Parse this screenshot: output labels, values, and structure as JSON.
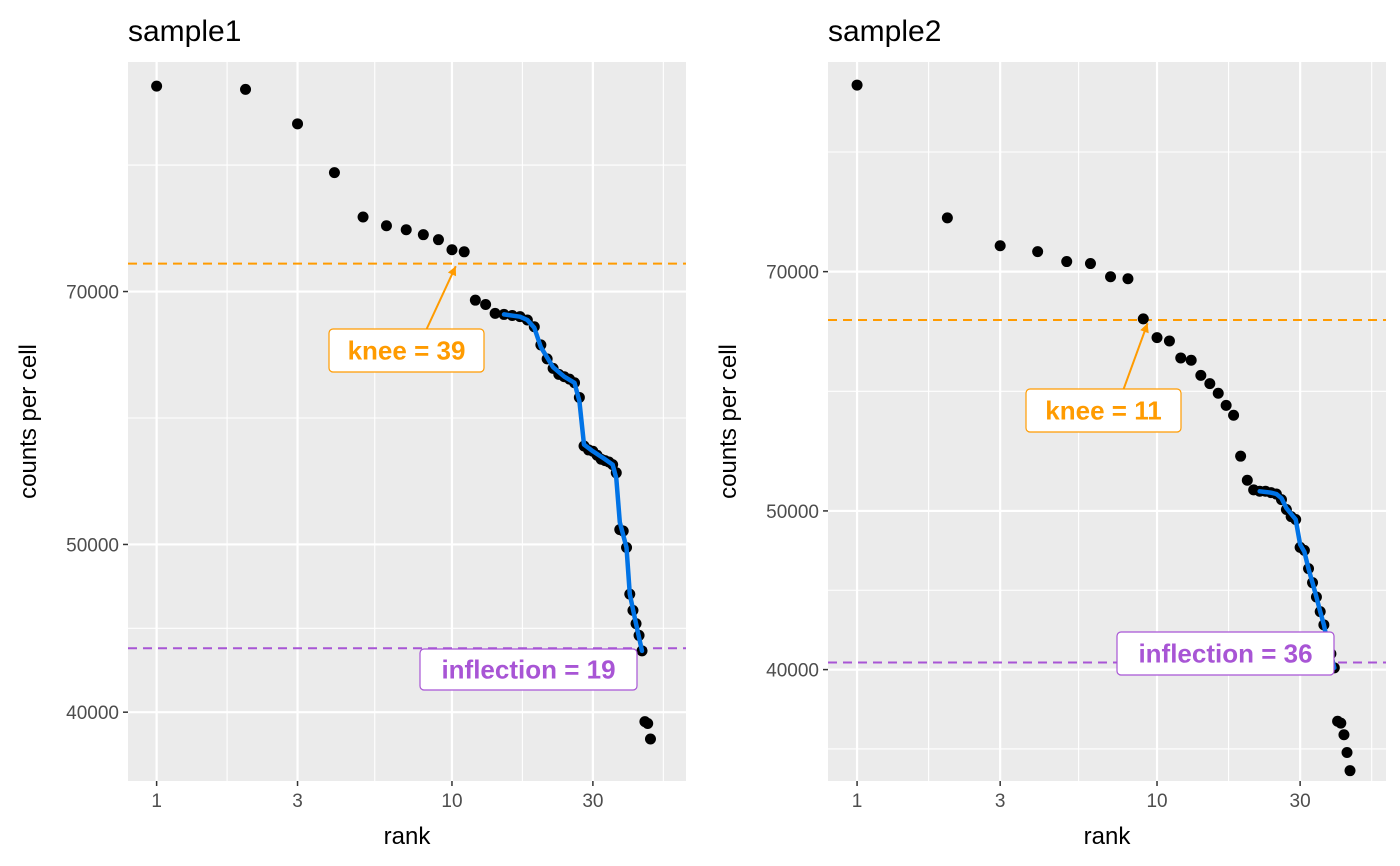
{
  "chart_data": [
    {
      "type": "scatter",
      "title": "sample1",
      "xlabel": "rank",
      "ylabel": "counts per cell",
      "x_scale": "log10",
      "y_scale": "log10",
      "xlim": [
        0.8,
        62
      ],
      "ylim": [
        36500,
        95000
      ],
      "x_breaks": [
        1,
        3,
        10,
        30
      ],
      "x_tick_labels": [
        "1",
        "3",
        "10",
        "30"
      ],
      "y_breaks": [
        40000,
        50000,
        70000
      ],
      "y_tick_labels": [
        "40000",
        "50000",
        "70000"
      ],
      "grid": true,
      "background": "#ebebeb",
      "points": [
        {
          "x": 1,
          "y": 92000
        },
        {
          "x": 2,
          "y": 91600
        },
        {
          "x": 3,
          "y": 87500
        },
        {
          "x": 4,
          "y": 82000
        },
        {
          "x": 5,
          "y": 77300
        },
        {
          "x": 6,
          "y": 76400
        },
        {
          "x": 7,
          "y": 76000
        },
        {
          "x": 8,
          "y": 75500
        },
        {
          "x": 9,
          "y": 75000
        },
        {
          "x": 10,
          "y": 74000
        },
        {
          "x": 11,
          "y": 73800
        },
        {
          "x": 12,
          "y": 69200
        },
        {
          "x": 13,
          "y": 68800
        },
        {
          "x": 14,
          "y": 68000
        },
        {
          "x": 15,
          "y": 67900
        },
        {
          "x": 16,
          "y": 67800
        },
        {
          "x": 17,
          "y": 67700
        },
        {
          "x": 18,
          "y": 67400
        },
        {
          "x": 19,
          "y": 66800
        },
        {
          "x": 20,
          "y": 65200
        },
        {
          "x": 21,
          "y": 64000
        },
        {
          "x": 22,
          "y": 63200
        },
        {
          "x": 23,
          "y": 62700
        },
        {
          "x": 24,
          "y": 62500
        },
        {
          "x": 25,
          "y": 62300
        },
        {
          "x": 26,
          "y": 62000
        },
        {
          "x": 27,
          "y": 60800
        },
        {
          "x": 28,
          "y": 57000
        },
        {
          "x": 29,
          "y": 56700
        },
        {
          "x": 30,
          "y": 56600
        },
        {
          "x": 31,
          "y": 56300
        },
        {
          "x": 32,
          "y": 56000
        },
        {
          "x": 33,
          "y": 55900
        },
        {
          "x": 34,
          "y": 55800
        },
        {
          "x": 35,
          "y": 55600
        },
        {
          "x": 36,
          "y": 55000
        },
        {
          "x": 37,
          "y": 51000
        },
        {
          "x": 38,
          "y": 50900
        },
        {
          "x": 39,
          "y": 49800
        },
        {
          "x": 40,
          "y": 46800
        },
        {
          "x": 41,
          "y": 45800
        },
        {
          "x": 42,
          "y": 45000
        },
        {
          "x": 43,
          "y": 44300
        },
        {
          "x": 44,
          "y": 43400
        },
        {
          "x": 45,
          "y": 39500
        },
        {
          "x": 46,
          "y": 39400
        },
        {
          "x": 47,
          "y": 38600
        }
      ],
      "fit_line": {
        "color": "#0073e6",
        "points": [
          {
            "x": 15,
            "y": 67900
          },
          {
            "x": 17,
            "y": 67700
          },
          {
            "x": 18,
            "y": 67400
          },
          {
            "x": 19,
            "y": 66700
          },
          {
            "x": 20,
            "y": 65000
          },
          {
            "x": 22,
            "y": 63300
          },
          {
            "x": 24,
            "y": 62500
          },
          {
            "x": 26,
            "y": 62000
          },
          {
            "x": 27,
            "y": 60500
          },
          {
            "x": 28,
            "y": 57100
          },
          {
            "x": 30,
            "y": 56600
          },
          {
            "x": 33,
            "y": 56000
          },
          {
            "x": 35,
            "y": 55600
          },
          {
            "x": 36,
            "y": 54600
          },
          {
            "x": 37,
            "y": 51500
          },
          {
            "x": 39,
            "y": 49800
          },
          {
            "x": 40,
            "y": 46800
          },
          {
            "x": 42,
            "y": 45000
          },
          {
            "x": 44,
            "y": 43400
          }
        ]
      },
      "reference_lines": [
        {
          "y": 72650,
          "color": "#ff9b00",
          "label": "knee = 39",
          "arrow_to": {
            "x": 10.3,
            "y": 72400
          }
        },
        {
          "y": 43550,
          "color": "#a855d5",
          "label": "inflection = 19"
        }
      ]
    },
    {
      "type": "scatter",
      "title": "sample2",
      "xlabel": "rank",
      "ylabel": "counts per cell",
      "x_scale": "log10",
      "y_scale": "log10",
      "xlim": [
        0.8,
        58
      ],
      "ylim": [
        34200,
        94000
      ],
      "x_breaks": [
        1,
        3,
        10,
        30
      ],
      "x_tick_labels": [
        "1",
        "3",
        "10",
        "30"
      ],
      "y_breaks": [
        40000,
        50000,
        70000
      ],
      "y_tick_labels": [
        "40000",
        "50000",
        "70000"
      ],
      "grid": true,
      "background": "#ebebeb",
      "points": [
        {
          "x": 1,
          "y": 91000
        },
        {
          "x": 2,
          "y": 75500
        },
        {
          "x": 3,
          "y": 72600
        },
        {
          "x": 4,
          "y": 72000
        },
        {
          "x": 5,
          "y": 71000
        },
        {
          "x": 6,
          "y": 70800
        },
        {
          "x": 7,
          "y": 69500
        },
        {
          "x": 8,
          "y": 69300
        },
        {
          "x": 9,
          "y": 65500
        },
        {
          "x": 10,
          "y": 63800
        },
        {
          "x": 11,
          "y": 63500
        },
        {
          "x": 12,
          "y": 62000
        },
        {
          "x": 13,
          "y": 61800
        },
        {
          "x": 14,
          "y": 60500
        },
        {
          "x": 15,
          "y": 59800
        },
        {
          "x": 16,
          "y": 59000
        },
        {
          "x": 17,
          "y": 58000
        },
        {
          "x": 18,
          "y": 57200
        },
        {
          "x": 19,
          "y": 54000
        },
        {
          "x": 20,
          "y": 52200
        },
        {
          "x": 21,
          "y": 51500
        },
        {
          "x": 22,
          "y": 51400
        },
        {
          "x": 23,
          "y": 51400
        },
        {
          "x": 24,
          "y": 51300
        },
        {
          "x": 25,
          "y": 51200
        },
        {
          "x": 26,
          "y": 50800
        },
        {
          "x": 27,
          "y": 50100
        },
        {
          "x": 28,
          "y": 49600
        },
        {
          "x": 29,
          "y": 49400
        },
        {
          "x": 30,
          "y": 47500
        },
        {
          "x": 31,
          "y": 47300
        },
        {
          "x": 32,
          "y": 46100
        },
        {
          "x": 33,
          "y": 45200
        },
        {
          "x": 34,
          "y": 44300
        },
        {
          "x": 35,
          "y": 43400
        },
        {
          "x": 36,
          "y": 42600
        },
        {
          "x": 37,
          "y": 41600
        },
        {
          "x": 38,
          "y": 40900
        },
        {
          "x": 39,
          "y": 40100
        },
        {
          "x": 40,
          "y": 37200
        },
        {
          "x": 41,
          "y": 37100
        },
        {
          "x": 42,
          "y": 36500
        },
        {
          "x": 43,
          "y": 35600
        },
        {
          "x": 44,
          "y": 34700
        }
      ],
      "fit_line": {
        "color": "#0073e6",
        "points": [
          {
            "x": 22,
            "y": 51400
          },
          {
            "x": 24,
            "y": 51300
          },
          {
            "x": 25,
            "y": 51200
          },
          {
            "x": 26,
            "y": 50900
          },
          {
            "x": 27,
            "y": 50200
          },
          {
            "x": 29,
            "y": 49400
          },
          {
            "x": 30,
            "y": 47700
          },
          {
            "x": 31,
            "y": 47200
          },
          {
            "x": 32,
            "y": 46100
          },
          {
            "x": 33,
            "y": 45200
          },
          {
            "x": 34,
            "y": 44300
          },
          {
            "x": 35,
            "y": 43400
          },
          {
            "x": 36,
            "y": 42600
          },
          {
            "x": 37,
            "y": 41600
          },
          {
            "x": 38,
            "y": 40900
          },
          {
            "x": 39,
            "y": 40100
          }
        ]
      },
      "reference_lines": [
        {
          "y": 65400,
          "color": "#ff9b00",
          "label": "knee = 11",
          "arrow_to": {
            "x": 9.3,
            "y": 65100
          }
        },
        {
          "y": 40400,
          "color": "#a855d5",
          "label": "inflection = 36"
        }
      ]
    }
  ]
}
